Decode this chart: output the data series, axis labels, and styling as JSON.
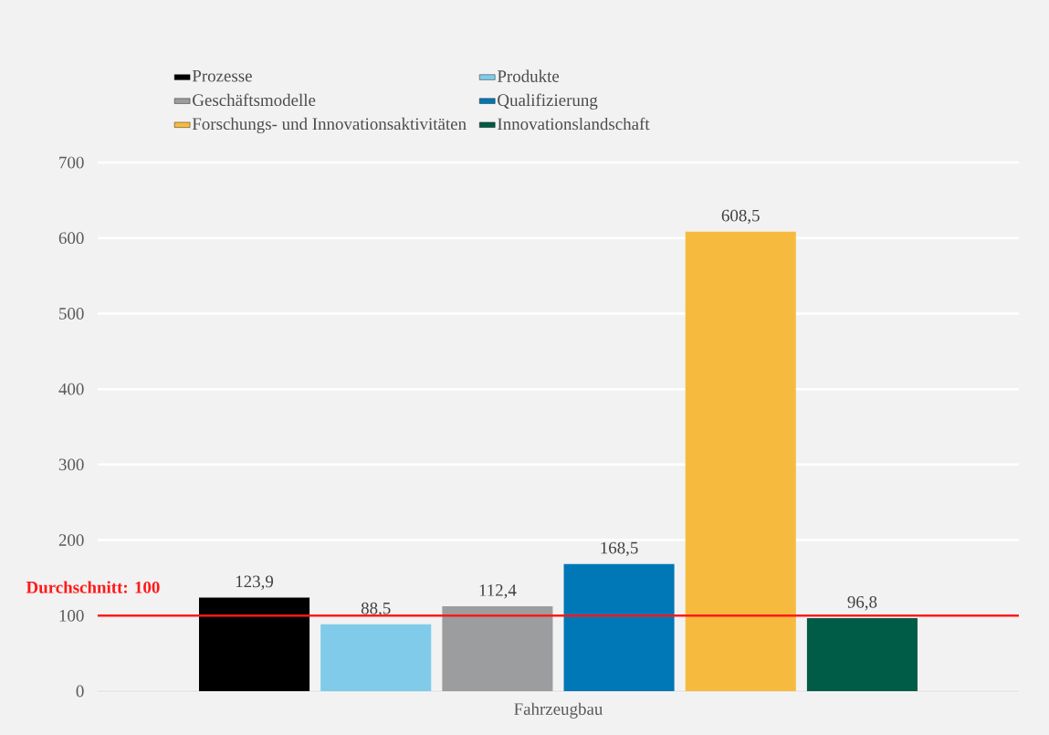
{
  "chart_data": {
    "type": "bar",
    "categories": [
      "Fahrzeugbau"
    ],
    "series": [
      {
        "name": "Prozesse",
        "color": "#000000",
        "values": [
          123.9
        ],
        "value_labels": [
          "123,9"
        ]
      },
      {
        "name": "Produkte",
        "color": "#80cbea",
        "values": [
          88.5
        ],
        "value_labels": [
          "88,5"
        ]
      },
      {
        "name": "Geschäftsmodelle",
        "color": "#9b9d9f",
        "values": [
          112.4
        ],
        "value_labels": [
          "112,4"
        ]
      },
      {
        "name": "Qualifizierung",
        "color": "#0077b6",
        "values": [
          168.5
        ],
        "value_labels": [
          "168,5"
        ]
      },
      {
        "name": "Forschungs- und Innovationsaktivitäten",
        "color": "#f6bb3e",
        "values": [
          608.5
        ],
        "value_labels": [
          "608,5"
        ]
      },
      {
        "name": "Innovationslandschaft",
        "color": "#005c46",
        "values": [
          96.8
        ],
        "value_labels": [
          "96,8"
        ]
      }
    ],
    "ylim": [
      0,
      700
    ],
    "yticks": [
      0,
      100,
      200,
      300,
      400,
      500,
      600,
      700
    ],
    "ref_lines": [
      {
        "axis": "y",
        "value": 100,
        "label": "Durchschnitt: 100",
        "color": "#ff1a1a"
      }
    ],
    "grid": "y",
    "legend": "top"
  }
}
